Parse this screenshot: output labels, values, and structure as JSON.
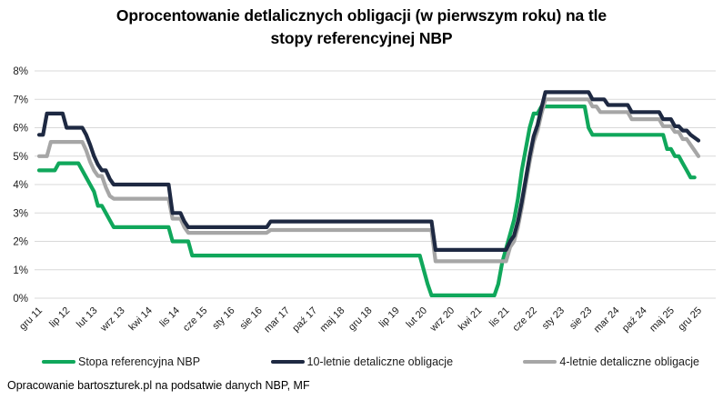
{
  "title_line1": "Oprocentowanie detlalicznych obligacji (w pierwszym roku) na tle",
  "title_line2": "stopy referencyjnej NBP",
  "footer": "Opracowanie bartoszturek.pl na podsatwie danych NBP, MF",
  "colors": {
    "green": "#10a75b",
    "navy": "#1e2942",
    "gray": "#a6a6a6",
    "gridline": "#d9d9d9",
    "tick_text": "#1a1a1a"
  },
  "chart_data": {
    "type": "line",
    "title": "Oprocentowanie detlalicznych obligacji (w pierwszym roku) na tle stopy referencyjnej NBP",
    "xlabel": "",
    "ylabel": "",
    "ylim": [
      0,
      8
    ],
    "grid": "horizontal",
    "legend_position": "bottom",
    "y_ticks": [
      "0%",
      "1%",
      "2%",
      "3%",
      "4%",
      "5%",
      "6%",
      "7%",
      "8%"
    ],
    "x_tick_labels": [
      "gru 11",
      "lip 12",
      "lut 13",
      "wrz 13",
      "kwi 14",
      "lis 14",
      "cze 15",
      "sty 16",
      "sie 16",
      "mar 17",
      "paź 17",
      "maj 18",
      "gru 18",
      "lip 19",
      "lut 20",
      "wrz 20",
      "kwi 21",
      "lis 21",
      "cze 22",
      "sty 23",
      "sie 23",
      "mar 24",
      "paź 24",
      "maj 25",
      "gru 25"
    ],
    "x_tick_step_months": 7,
    "points_per_series": 169,
    "x_start": "gru 11",
    "x_end": "gru 25",
    "series": [
      {
        "name": "Stopa referencyjna NBP",
        "color": "#10a75b",
        "values": [
          4.5,
          4.5,
          4.5,
          4.5,
          4.5,
          4.75,
          4.75,
          4.75,
          4.75,
          4.75,
          4.75,
          4.5,
          4.25,
          4,
          3.75,
          3.25,
          3.25,
          3,
          2.75,
          2.5,
          2.5,
          2.5,
          2.5,
          2.5,
          2.5,
          2.5,
          2.5,
          2.5,
          2.5,
          2.5,
          2.5,
          2.5,
          2.5,
          2.5,
          2,
          2,
          2,
          2,
          2,
          1.5,
          1.5,
          1.5,
          1.5,
          1.5,
          1.5,
          1.5,
          1.5,
          1.5,
          1.5,
          1.5,
          1.5,
          1.5,
          1.5,
          1.5,
          1.5,
          1.5,
          1.5,
          1.5,
          1.5,
          1.5,
          1.5,
          1.5,
          1.5,
          1.5,
          1.5,
          1.5,
          1.5,
          1.5,
          1.5,
          1.5,
          1.5,
          1.5,
          1.5,
          1.5,
          1.5,
          1.5,
          1.5,
          1.5,
          1.5,
          1.5,
          1.5,
          1.5,
          1.5,
          1.5,
          1.5,
          1.5,
          1.5,
          1.5,
          1.5,
          1.5,
          1.5,
          1.5,
          1.5,
          1.5,
          1.5,
          1.5,
          1.5,
          1.5,
          1,
          0.5,
          0.1,
          0.1,
          0.1,
          0.1,
          0.1,
          0.1,
          0.1,
          0.1,
          0.1,
          0.1,
          0.1,
          0.1,
          0.1,
          0.1,
          0.1,
          0.1,
          0.1,
          0.5,
          1.25,
          1.75,
          2.25,
          2.75,
          3.5,
          4.5,
          5.25,
          6,
          6.5,
          6.5,
          6.75,
          6.75,
          6.75,
          6.75,
          6.75,
          6.75,
          6.75,
          6.75,
          6.75,
          6.75,
          6.75,
          6.75,
          6,
          5.75,
          5.75,
          5.75,
          5.75,
          5.75,
          5.75,
          5.75,
          5.75,
          5.75,
          5.75,
          5.75,
          5.75,
          5.75,
          5.75,
          5.75,
          5.75,
          5.75,
          5.75,
          5.75,
          5.25,
          5.25,
          5,
          5,
          4.75,
          4.5,
          4.25,
          4.25
        ]
      },
      {
        "name": "10-letnie detaliczne obligacje",
        "color": "#1e2942",
        "values": [
          5.75,
          5.75,
          6.5,
          6.5,
          6.5,
          6.5,
          6.5,
          6,
          6,
          6,
          6,
          6,
          5.75,
          5.4,
          5,
          4.7,
          4.5,
          4.5,
          4.2,
          4,
          4,
          4,
          4,
          4,
          4,
          4,
          4,
          4,
          4,
          4,
          4,
          4,
          4,
          4,
          3,
          3,
          3,
          2.7,
          2.5,
          2.5,
          2.5,
          2.5,
          2.5,
          2.5,
          2.5,
          2.5,
          2.5,
          2.5,
          2.5,
          2.5,
          2.5,
          2.5,
          2.5,
          2.5,
          2.5,
          2.5,
          2.5,
          2.5,
          2.5,
          2.7,
          2.7,
          2.7,
          2.7,
          2.7,
          2.7,
          2.7,
          2.7,
          2.7,
          2.7,
          2.7,
          2.7,
          2.7,
          2.7,
          2.7,
          2.7,
          2.7,
          2.7,
          2.7,
          2.7,
          2.7,
          2.7,
          2.7,
          2.7,
          2.7,
          2.7,
          2.7,
          2.7,
          2.7,
          2.7,
          2.7,
          2.7,
          2.7,
          2.7,
          2.7,
          2.7,
          2.7,
          2.7,
          2.7,
          2.7,
          2.7,
          2.7,
          1.7,
          1.7,
          1.7,
          1.7,
          1.7,
          1.7,
          1.7,
          1.7,
          1.7,
          1.7,
          1.7,
          1.7,
          1.7,
          1.7,
          1.7,
          1.7,
          1.7,
          1.7,
          1.7,
          2,
          2.2,
          2.7,
          3.4,
          4.2,
          5,
          5.7,
          6.1,
          6.7,
          7.25,
          7.25,
          7.25,
          7.25,
          7.25,
          7.25,
          7.25,
          7.25,
          7.25,
          7.25,
          7.25,
          7.25,
          7,
          7,
          7,
          7,
          6.8,
          6.8,
          6.8,
          6.8,
          6.8,
          6.8,
          6.55,
          6.55,
          6.55,
          6.55,
          6.55,
          6.55,
          6.55,
          6.55,
          6.3,
          6.3,
          6.3,
          6.05,
          6.05,
          5.9,
          5.9,
          5.75,
          5.65,
          5.55
        ]
      },
      {
        "name": "4-letnie detaliczne obligacje",
        "color": "#a6a6a6",
        "values": [
          5,
          5,
          5,
          5.5,
          5.5,
          5.5,
          5.5,
          5.5,
          5.5,
          5.5,
          5.5,
          5.5,
          5.2,
          4.8,
          4.5,
          4.3,
          4.3,
          3.9,
          3.6,
          3.5,
          3.5,
          3.5,
          3.5,
          3.5,
          3.5,
          3.5,
          3.5,
          3.5,
          3.5,
          3.5,
          3.5,
          3.5,
          3.5,
          3.5,
          2.8,
          2.8,
          2.8,
          2.5,
          2.3,
          2.3,
          2.3,
          2.3,
          2.3,
          2.3,
          2.3,
          2.3,
          2.3,
          2.3,
          2.3,
          2.3,
          2.3,
          2.3,
          2.3,
          2.3,
          2.3,
          2.3,
          2.3,
          2.3,
          2.3,
          2.4,
          2.4,
          2.4,
          2.4,
          2.4,
          2.4,
          2.4,
          2.4,
          2.4,
          2.4,
          2.4,
          2.4,
          2.4,
          2.4,
          2.4,
          2.4,
          2.4,
          2.4,
          2.4,
          2.4,
          2.4,
          2.4,
          2.4,
          2.4,
          2.4,
          2.4,
          2.4,
          2.4,
          2.4,
          2.4,
          2.4,
          2.4,
          2.4,
          2.4,
          2.4,
          2.4,
          2.4,
          2.4,
          2.4,
          2.4,
          2.4,
          2.4,
          1.3,
          1.3,
          1.3,
          1.3,
          1.3,
          1.3,
          1.3,
          1.3,
          1.3,
          1.3,
          1.3,
          1.3,
          1.3,
          1.3,
          1.3,
          1.3,
          1.3,
          1.3,
          1.3,
          1.8,
          2,
          2.5,
          3.2,
          4,
          4.8,
          5.5,
          5.9,
          6.5,
          7,
          7,
          7,
          7,
          7,
          7,
          7,
          7,
          7,
          7,
          7,
          7,
          6.75,
          6.75,
          6.55,
          6.55,
          6.55,
          6.55,
          6.55,
          6.55,
          6.55,
          6.55,
          6.3,
          6.3,
          6.3,
          6.3,
          6.3,
          6.3,
          6.3,
          6.3,
          6.05,
          6.05,
          6.05,
          5.85,
          5.85,
          5.6,
          5.6,
          5.4,
          5.2,
          5
        ]
      }
    ]
  }
}
